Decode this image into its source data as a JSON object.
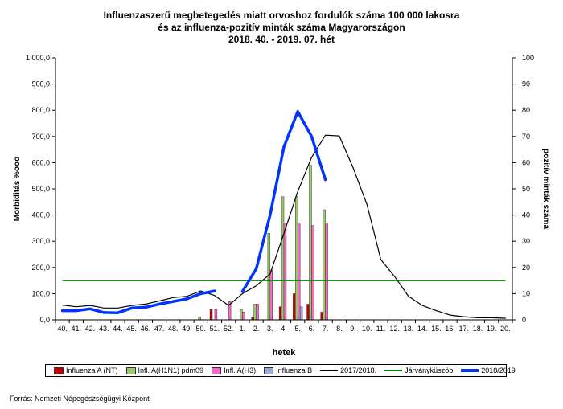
{
  "chart_data": {
    "type": "bar+line",
    "title_lines": [
      "Influenzaszerű megbetegedés miatt orvoshoz fordulók száma 100 000 lakosra",
      "és az influenza-pozitív minták száma Magyarországon",
      "2018. 40. - 2019. 07. hét"
    ],
    "xlabel": "hetek",
    "ylabel_left": "Morbiditás %ooo",
    "ylabel_right": "pozitív minták száma",
    "ylim_left": [
      0,
      1000
    ],
    "ylim_right": [
      0,
      100
    ],
    "left_ticks": [
      "0,0",
      "100,0",
      "200,0",
      "300,0",
      "400,0",
      "500,0",
      "600,0",
      "700,0",
      "800,0",
      "900,0",
      "1 000,0"
    ],
    "right_ticks": [
      "0",
      "10",
      "20",
      "30",
      "40",
      "50",
      "60",
      "70",
      "80",
      "90",
      "100"
    ],
    "categories": [
      "40.",
      "41.",
      "42.",
      "43.",
      "44.",
      "45.",
      "46.",
      "47.",
      "48.",
      "49.",
      "50.",
      "51.",
      "52.",
      "1.",
      "2.",
      "3.",
      "4.",
      "5.",
      "6.",
      "7.",
      "8.",
      "9.",
      "10.",
      "11.",
      "12.",
      "13.",
      "14.",
      "15.",
      "16.",
      "17.",
      "18.",
      "19.",
      "20."
    ],
    "bar_series": [
      {
        "name": "Influenza A (NT)",
        "color": "#c00000",
        "values": [
          0,
          0,
          0,
          0,
          0,
          0,
          0,
          0,
          0,
          0,
          0,
          4,
          0,
          0,
          1,
          0,
          5,
          10,
          6,
          3,
          0,
          0,
          0,
          0,
          0,
          0,
          0,
          0,
          0,
          0,
          0,
          0,
          0
        ]
      },
      {
        "name": "Infl. A(H1N1) pdm09",
        "color": "#99cc66",
        "values": [
          0,
          0,
          0,
          0,
          0,
          0,
          0,
          0,
          0,
          0,
          1,
          0,
          0,
          4,
          6,
          33,
          47,
          47,
          59,
          42,
          0,
          0,
          0,
          0,
          0,
          0,
          0,
          0,
          0,
          0,
          0,
          0,
          0
        ]
      },
      {
        "name": "Infl. A(H3)",
        "color": "#ff66cc",
        "values": [
          0,
          0,
          0,
          0,
          0,
          0,
          0,
          0,
          0,
          0,
          0,
          4,
          7,
          3,
          6,
          19,
          37,
          37,
          36,
          37,
          0,
          0,
          0,
          0,
          0,
          0,
          0,
          0,
          0,
          0,
          0,
          0,
          0
        ]
      },
      {
        "name": "Influenza B",
        "color": "#99aadd",
        "values": [
          0,
          0,
          0,
          0,
          0,
          0,
          0,
          0,
          0,
          0,
          0,
          0,
          0,
          0,
          0,
          0,
          0,
          5,
          0,
          0,
          0,
          0,
          0,
          0,
          0,
          0,
          0,
          0,
          0,
          0,
          0,
          0,
          0
        ]
      }
    ],
    "line_series": [
      {
        "name": "2017/2018.",
        "color": "#000000",
        "axis": "left",
        "values": [
          56,
          50,
          55,
          45,
          45,
          55,
          60,
          72,
          85,
          90,
          110,
          93,
          55,
          100,
          130,
          175,
          330,
          490,
          620,
          705,
          702,
          580,
          440,
          230,
          165,
          90,
          55,
          35,
          18,
          12,
          8,
          8,
          6
        ]
      },
      {
        "name": "Járványküszöb",
        "color": "#008000",
        "axis": "left",
        "constant": 150
      },
      {
        "name": "2018/2019",
        "color": "#0033ff",
        "axis": "left",
        "values": [
          35,
          35,
          42,
          28,
          27,
          45,
          48,
          60,
          70,
          80,
          100,
          110,
          null,
          108,
          195,
          400,
          660,
          795,
          700,
          535
        ]
      }
    ],
    "source": "Forrás: Nemzeti Népegészségügyi Központ"
  }
}
